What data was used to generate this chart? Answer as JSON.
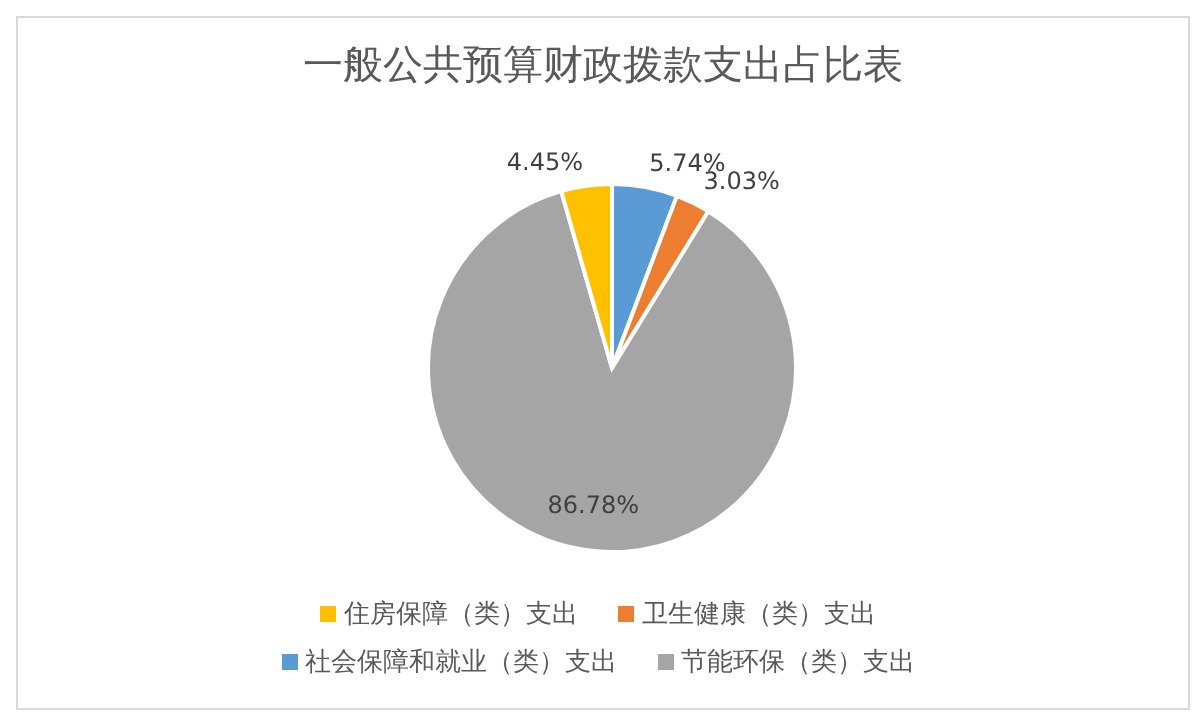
{
  "chart_data": {
    "type": "pie",
    "title": "一般公共预算财政拨款支出占比表",
    "categories": [
      "社会保障和就业（类）支出",
      "卫生健康（类）支出",
      "节能环保（类）支出",
      "住房保障（类）支出"
    ],
    "values": [
      5.74,
      3.03,
      86.78,
      4.45
    ],
    "colors": [
      "#5b9bd5",
      "#ed7d31",
      "#a5a5a5",
      "#ffc000"
    ],
    "value_labels": [
      "5.74%",
      "3.03%",
      "86.78%",
      "4.45%"
    ],
    "legend": "bottom"
  }
}
